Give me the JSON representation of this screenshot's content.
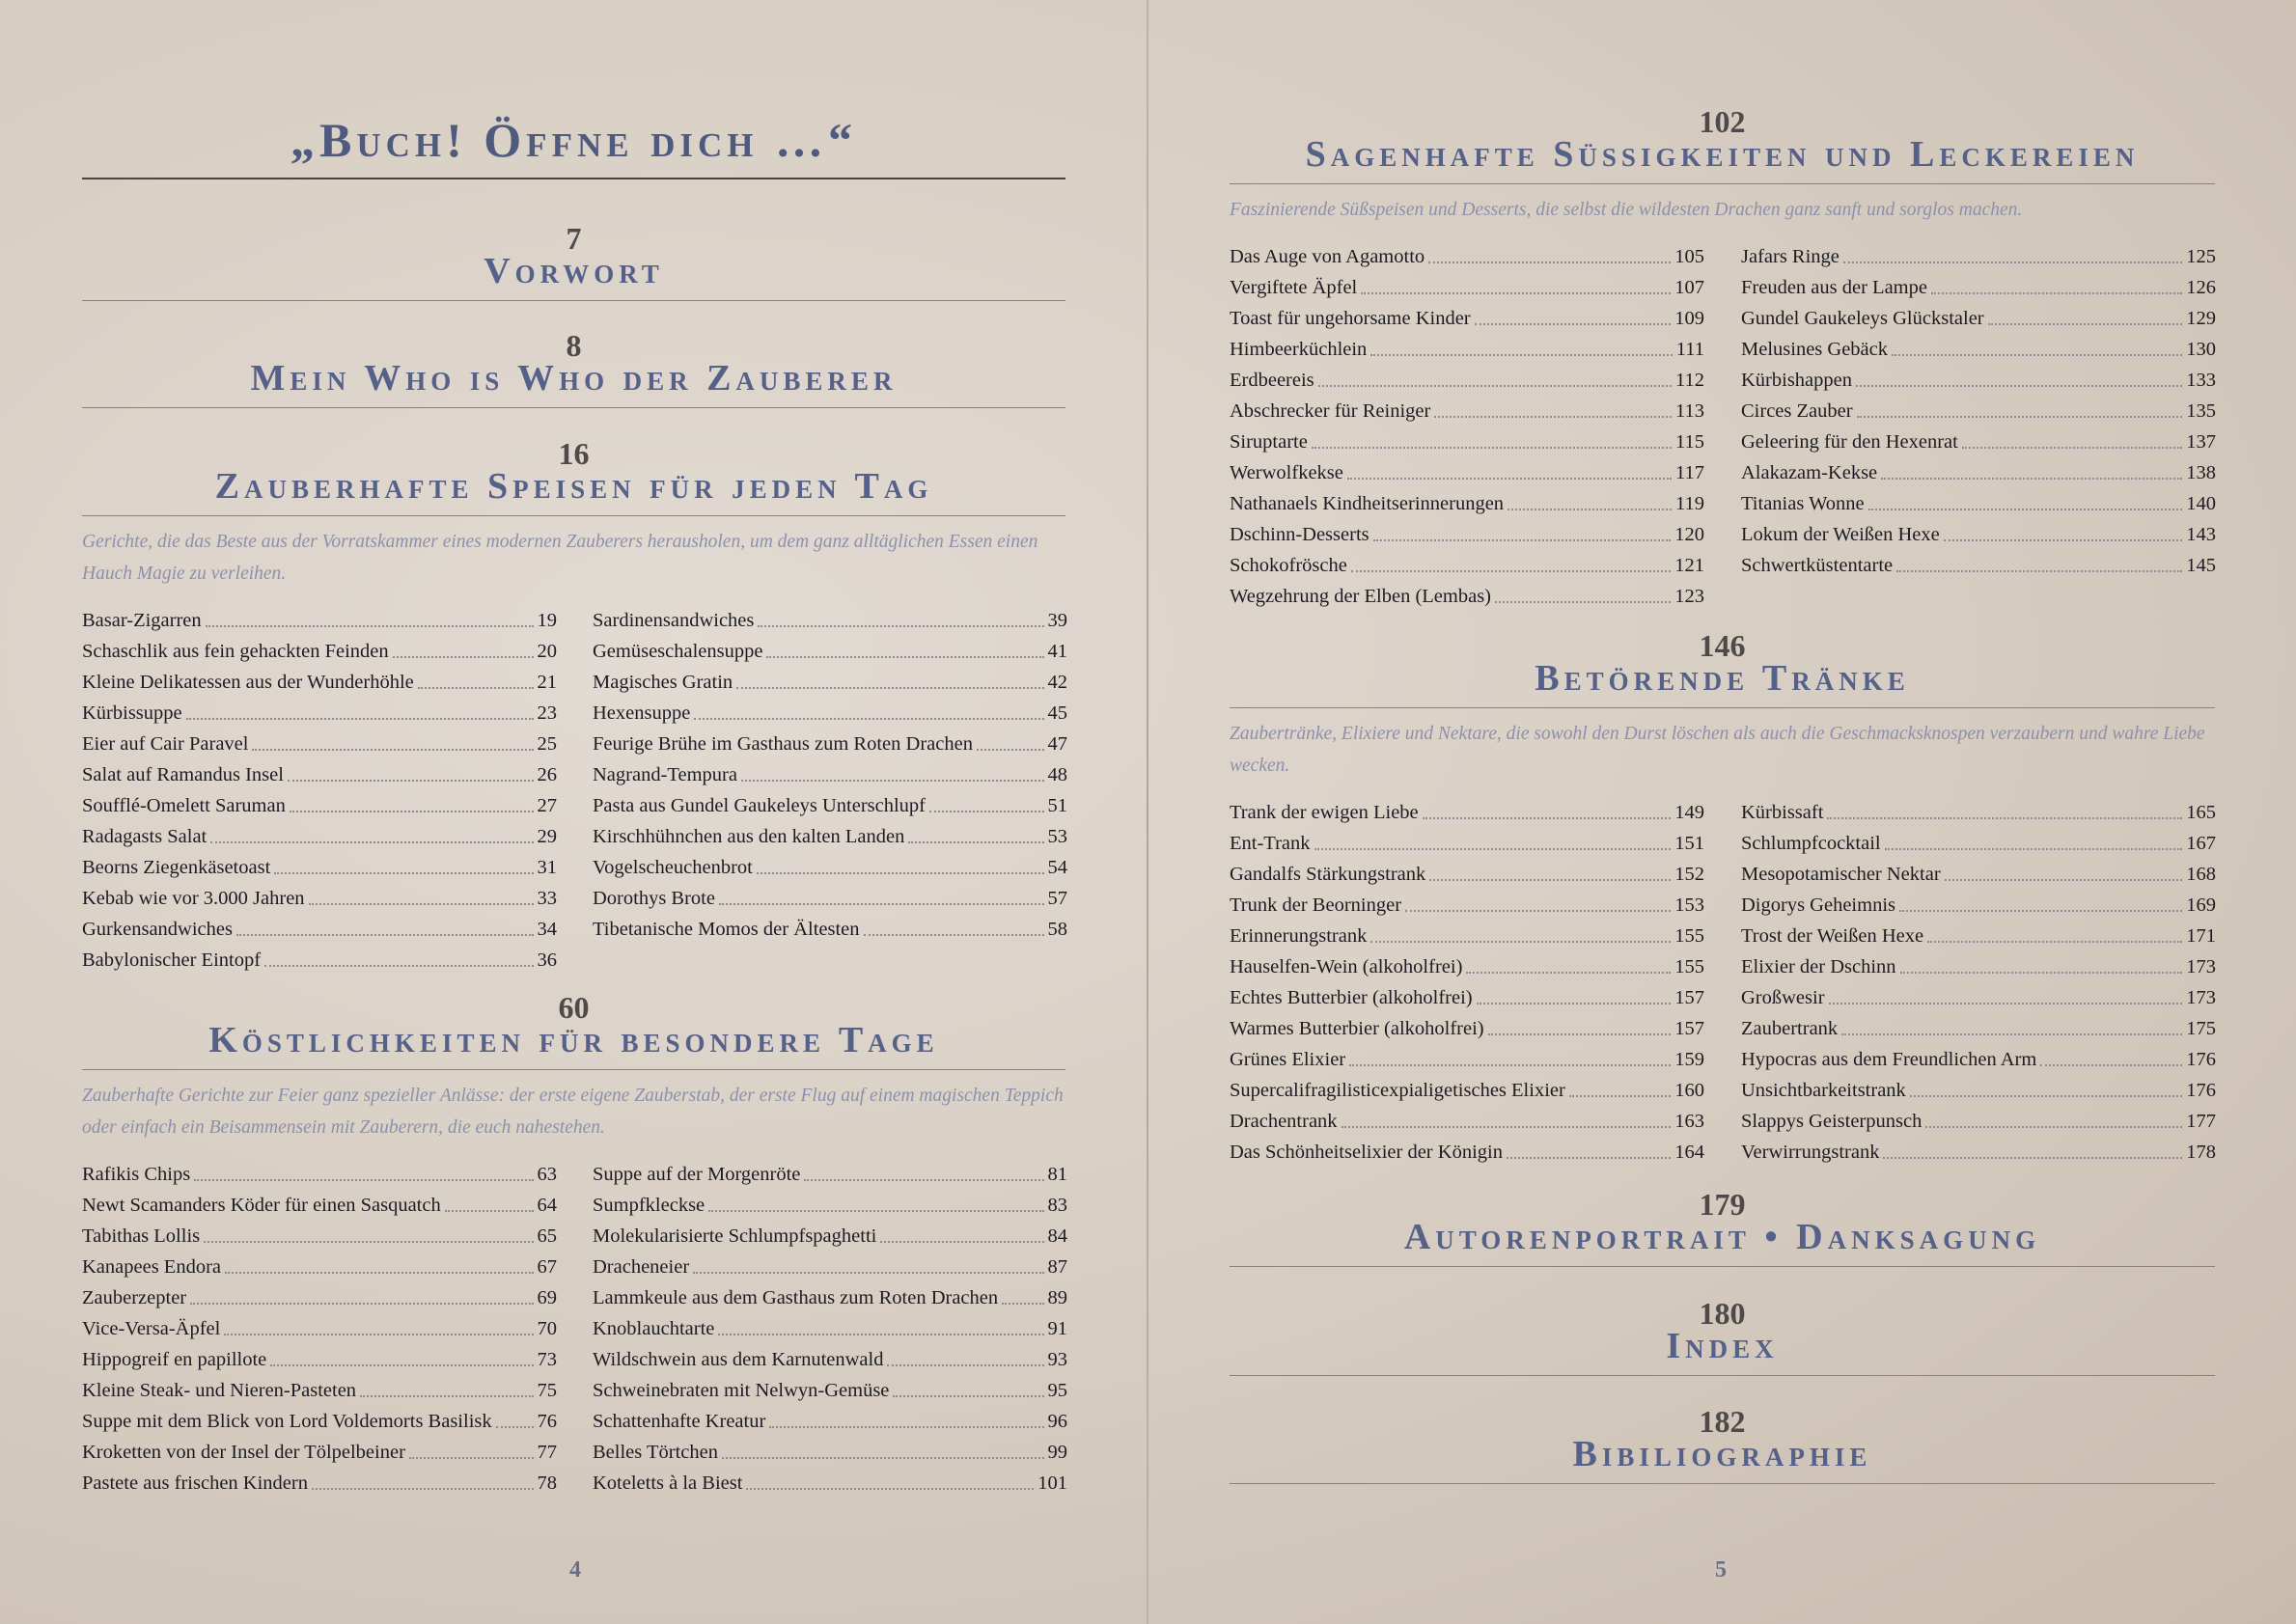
{
  "pages": [
    {
      "title": "„Buch! Öffne dich …“",
      "sections": [
        {
          "page": 7,
          "title": "Vorwort"
        },
        {
          "page": 8,
          "title": "Mein Who is Who der Zauberer"
        },
        {
          "page": 16,
          "title": "Zauberhafte Speisen für jeden Tag",
          "intro": "Gerichte, die das Beste aus der Vorratskammer eines modernen Zauberers herausholen, um dem ganz alltäglichen Essen einen Hauch Magie zu verleihen.",
          "columns": [
            [
              {
                "name": "Basar-Zigarren",
                "page": 19
              },
              {
                "name": "Schaschlik aus fein gehackten Feinden",
                "page": 20
              },
              {
                "name": "Kleine Delikatessen aus der Wunderhöhle",
                "page": 21
              },
              {
                "name": "Kürbissuppe",
                "page": 23
              },
              {
                "name": "Eier auf Cair Paravel",
                "page": 25
              },
              {
                "name": "Salat auf Ramandus Insel",
                "page": 26
              },
              {
                "name": "Soufflé-Omelett Saruman",
                "page": 27
              },
              {
                "name": "Radagasts Salat",
                "page": 29
              },
              {
                "name": "Beorns Ziegenkäsetoast",
                "page": 31
              },
              {
                "name": "Kebab wie vor 3.000 Jahren",
                "page": 33
              },
              {
                "name": "Gurkensandwiches",
                "page": 34
              },
              {
                "name": "Babylonischer Eintopf",
                "page": 36
              }
            ],
            [
              {
                "name": "Sardinensandwiches",
                "page": 39
              },
              {
                "name": "Gemüseschalensuppe",
                "page": 41
              },
              {
                "name": "Magisches Gratin",
                "page": 42
              },
              {
                "name": "Hexensuppe",
                "page": 45
              },
              {
                "name": "Feurige Brühe im Gasthaus zum Roten Drachen",
                "page": 47
              },
              {
                "name": "Nagrand-Tempura",
                "page": 48
              },
              {
                "name": "Pasta aus Gundel Gaukeleys Unterschlupf",
                "page": 51
              },
              {
                "name": "Kirschhühnchen aus den kalten Landen",
                "page": 53
              },
              {
                "name": "Vogelscheuchenbrot",
                "page": 54
              },
              {
                "name": "Dorothys Brote",
                "page": 57
              },
              {
                "name": "Tibetanische Momos der Ältesten",
                "page": 58
              }
            ]
          ]
        },
        {
          "page": 60,
          "title": "Köstlichkeiten für besondere Tage",
          "intro": "Zauberhafte Gerichte zur Feier ganz spezieller Anlässe: der erste eigene Zauberstab, der erste Flug auf einem magischen Teppich oder einfach ein Beisammensein mit Zauberern, die euch nahestehen.",
          "columns": [
            [
              {
                "name": "Rafikis Chips",
                "page": 63
              },
              {
                "name": "Newt Scamanders Köder für einen Sasquatch",
                "page": 64
              },
              {
                "name": "Tabithas Lollis",
                "page": 65
              },
              {
                "name": "Kanapees Endora",
                "page": 67
              },
              {
                "name": "Zauberzepter",
                "page": 69
              },
              {
                "name": "Vice-Versa-Äpfel",
                "page": 70
              },
              {
                "name": "Hippogreif en papillote",
                "page": 73
              },
              {
                "name": "Kleine Steak- und Nieren-Pasteten",
                "page": 75
              },
              {
                "name": "Suppe mit dem Blick von Lord Voldemorts Basilisk",
                "page": 76
              },
              {
                "name": "Kroketten von der Insel der Tölpelbeiner",
                "page": 77
              },
              {
                "name": "Pastete aus frischen Kindern",
                "page": 78
              }
            ],
            [
              {
                "name": "Suppe auf der Morgenröte",
                "page": 81
              },
              {
                "name": "Sumpfkleckse",
                "page": 83
              },
              {
                "name": "Molekularisierte Schlumpfspaghetti",
                "page": 84
              },
              {
                "name": "Dracheneier",
                "page": 87
              },
              {
                "name": "Lammkeule aus dem Gasthaus zum Roten Drachen",
                "page": 89
              },
              {
                "name": "Knoblauchtarte",
                "page": 91
              },
              {
                "name": "Wildschwein aus dem Karnutenwald",
                "page": 93
              },
              {
                "name": "Schweinebraten mit Nelwyn-Gemüse",
                "page": 95
              },
              {
                "name": "Schattenhafte Kreatur",
                "page": 96
              },
              {
                "name": "Belles Törtchen",
                "page": 99
              },
              {
                "name": "Koteletts à la Biest",
                "page": 101
              }
            ]
          ]
        }
      ],
      "folio": 4
    },
    {
      "sections": [
        {
          "page": 102,
          "title": "Sagenhafte Süssigkeiten und Leckereien",
          "intro": "Faszinierende Süßspeisen und Desserts, die selbst die wildesten Drachen ganz sanft und sorglos machen.",
          "columns": [
            [
              {
                "name": "Das Auge von Agamotto",
                "page": 105
              },
              {
                "name": "Vergiftete Äpfel",
                "page": 107
              },
              {
                "name": "Toast für ungehorsame Kinder",
                "page": 109
              },
              {
                "name": "Himbeerküchlein",
                "page": 111
              },
              {
                "name": "Erdbeereis",
                "page": 112
              },
              {
                "name": "Abschrecker für Reiniger",
                "page": 113
              },
              {
                "name": "Siruptarte",
                "page": 115
              },
              {
                "name": "Werwolfkekse",
                "page": 117
              },
              {
                "name": "Nathanaels Kindheitserinnerungen",
                "page": 119
              },
              {
                "name": "Dschinn-Desserts",
                "page": 120
              },
              {
                "name": "Schokofrösche",
                "page": 121
              },
              {
                "name": "Wegzehrung der Elben (Lembas)",
                "page": 123
              }
            ],
            [
              {
                "name": "Jafars Ringe",
                "page": 125
              },
              {
                "name": "Freuden aus der Lampe",
                "page": 126
              },
              {
                "name": "Gundel Gaukeleys Glückstaler",
                "page": 129
              },
              {
                "name": "Melusines Gebäck",
                "page": 130
              },
              {
                "name": "Kürbishappen",
                "page": 133
              },
              {
                "name": "Circes Zauber",
                "page": 135
              },
              {
                "name": "Geleering für den Hexenrat",
                "page": 137
              },
              {
                "name": "Alakazam-Kekse",
                "page": 138
              },
              {
                "name": "Titanias Wonne",
                "page": 140
              },
              {
                "name": "Lokum der Weißen Hexe",
                "page": 143
              },
              {
                "name": "Schwertküstentarte",
                "page": 145
              }
            ]
          ]
        },
        {
          "page": 146,
          "title": "Betörende Tränke",
          "intro": "Zaubertränke, Elixiere und Nektare, die sowohl den Durst löschen als auch die Geschmacksknospen verzaubern und wahre Liebe wecken.",
          "columns": [
            [
              {
                "name": "Trank der ewigen Liebe",
                "page": 149
              },
              {
                "name": "Ent-Trank",
                "page": 151
              },
              {
                "name": "Gandalfs Stärkungstrank",
                "page": 152
              },
              {
                "name": "Trunk der Beorninger",
                "page": 153
              },
              {
                "name": "Erinnerungstrank",
                "page": 155
              },
              {
                "name": "Hauselfen-Wein (alkoholfrei)",
                "page": 155
              },
              {
                "name": "Echtes Butterbier (alkoholfrei)",
                "page": 157
              },
              {
                "name": "Warmes Butterbier (alkoholfrei)",
                "page": 157
              },
              {
                "name": "Grünes Elixier",
                "page": 159
              },
              {
                "name": "Supercalifragilisticexpialigetisches Elixier",
                "page": 160
              },
              {
                "name": "Drachentrank",
                "page": 163
              },
              {
                "name": "Das Schönheitselixier der Königin",
                "page": 164
              }
            ],
            [
              {
                "name": "Kürbissaft",
                "page": 165
              },
              {
                "name": "Schlumpfcocktail",
                "page": 167
              },
              {
                "name": "Mesopotamischer Nektar",
                "page": 168
              },
              {
                "name": "Digorys Geheimnis",
                "page": 169
              },
              {
                "name": "Trost der Weißen Hexe",
                "page": 171
              },
              {
                "name": "Elixier der Dschinn",
                "page": 173
              },
              {
                "name": "Großwesir",
                "page": 173
              },
              {
                "name": "Zaubertrank",
                "page": 175
              },
              {
                "name": "Hypocras aus dem Freundlichen Arm",
                "page": 176
              },
              {
                "name": "Unsichtbarkeitstrank",
                "page": 176
              },
              {
                "name": "Slappys Geisterpunsch",
                "page": 177
              },
              {
                "name": "Verwirrungstrank",
                "page": 178
              }
            ]
          ]
        },
        {
          "page": 179,
          "title": "Autorenportrait • Danksagung"
        },
        {
          "page": 180,
          "title": "Index"
        },
        {
          "page": 182,
          "title": "Bibiliographie"
        }
      ],
      "folio": 5
    }
  ]
}
